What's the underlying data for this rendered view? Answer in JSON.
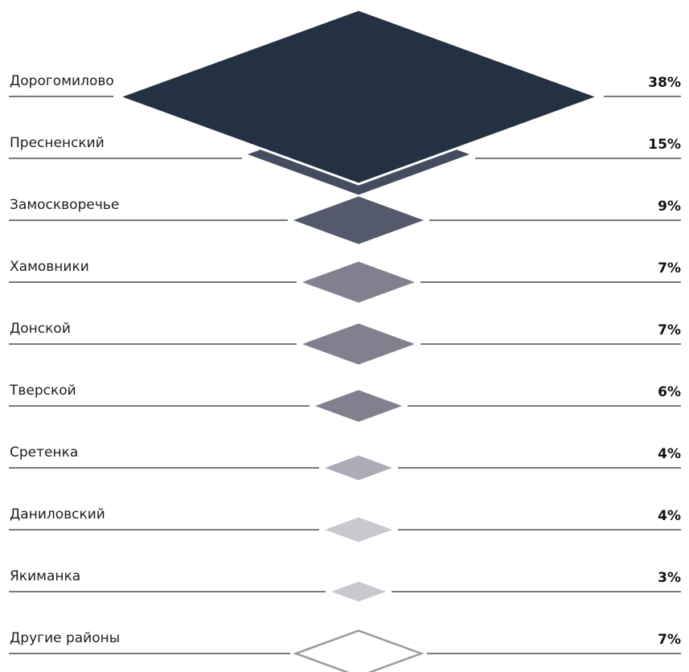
{
  "chart_data": {
    "type": "diamond-pictorial",
    "categories": [
      "Дорогомилово",
      "Пресненский",
      "Замоскворечье",
      "Хамовники",
      "Донской",
      "Тверской",
      "Сретенка",
      "Даниловский",
      "Якиманка",
      "Другие районы"
    ],
    "values": [
      38,
      15,
      9,
      7,
      7,
      6,
      4,
      4,
      3,
      7
    ],
    "value_labels": [
      "38%",
      "15%",
      "9%",
      "7%",
      "7%",
      "6%",
      "4%",
      "4%",
      "3%",
      "7%"
    ],
    "colors": [
      "#243142",
      "#454c60",
      "#545a6c",
      "#80808e",
      "#80808e",
      "#80808e",
      "#acacb6",
      "#c8c8ce",
      "#c8c8ce",
      "#ffffff"
    ],
    "outline_color": "#9a9a9a",
    "line_color": "#2a2a2a"
  }
}
